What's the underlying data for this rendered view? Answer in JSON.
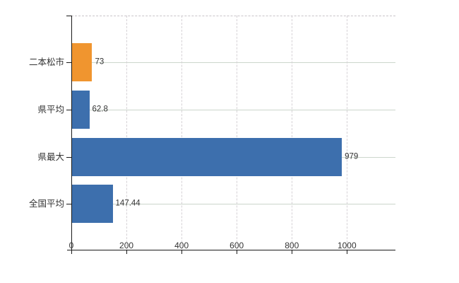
{
  "chart_data": {
    "type": "bar",
    "orientation": "horizontal",
    "title": "",
    "categories": [
      "二本松市",
      "県平均",
      "県最大",
      "全国平均"
    ],
    "values": [
      73,
      62.8,
      979,
      147.44
    ],
    "value_labels": [
      "73",
      "62.8",
      "979",
      "147.44"
    ],
    "bar_colors": [
      "#f0952f",
      "#3d6fad",
      "#3d6fad",
      "#3d6fad"
    ],
    "x_ticks": [
      0,
      200,
      400,
      600,
      800,
      1000
    ],
    "xlim": [
      0,
      1176
    ],
    "grid": true,
    "legend": false,
    "colors": {
      "bar_orange": "#f0952f",
      "bar_blue": "#3d6fad",
      "axis": "#1a1a1a",
      "grid_horizontal": "#ccd6cc",
      "grid_vertical": "#d6d2d6",
      "text": "#333333",
      "background": "#ffffff"
    }
  }
}
